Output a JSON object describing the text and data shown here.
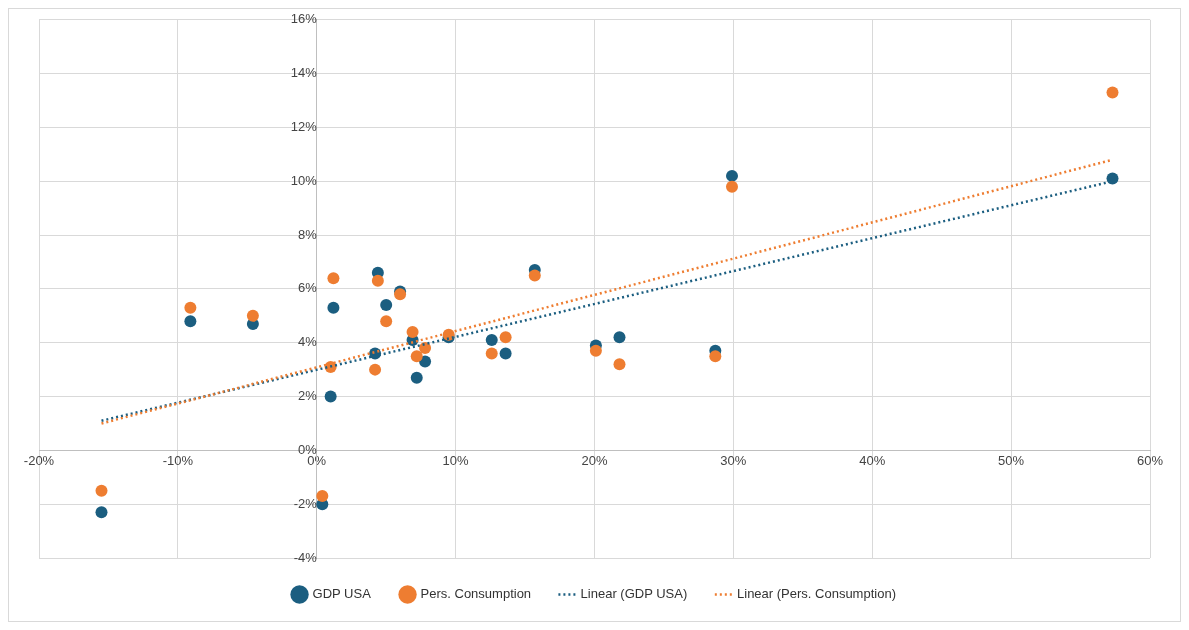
{
  "chart_data": {
    "type": "scatter",
    "grid": true,
    "legend": "bottom",
    "xlim": [
      -20,
      60
    ],
    "ylim": [
      -4,
      16
    ],
    "xticks": [
      {
        "value": -20,
        "label": "-20%"
      },
      {
        "value": -10,
        "label": "-10%"
      },
      {
        "value": 0,
        "label": "0%"
      },
      {
        "value": 10,
        "label": "10%"
      },
      {
        "value": 20,
        "label": "20%"
      },
      {
        "value": 30,
        "label": "30%"
      },
      {
        "value": 40,
        "label": "40%"
      },
      {
        "value": 50,
        "label": "50%"
      },
      {
        "value": 60,
        "label": "60%"
      }
    ],
    "yticks": [
      {
        "value": -4,
        "label": "-4%"
      },
      {
        "value": -2,
        "label": "-2%"
      },
      {
        "value": 0,
        "label": "0%"
      },
      {
        "value": 2,
        "label": "2%"
      },
      {
        "value": 4,
        "label": "4%"
      },
      {
        "value": 6,
        "label": "6%"
      },
      {
        "value": 8,
        "label": "8%"
      },
      {
        "value": 10,
        "label": "10%"
      },
      {
        "value": 12,
        "label": "12%"
      },
      {
        "value": 14,
        "label": "14%"
      },
      {
        "value": 16,
        "label": "16%"
      }
    ],
    "series": [
      {
        "name": "GDP USA",
        "marker": "circle",
        "color": "#1b5e80",
        "x": [
          -15.5,
          -9.1,
          -4.6,
          0.4,
          1.0,
          1.2,
          4.2,
          4.4,
          5.0,
          6.0,
          6.9,
          7.2,
          7.8,
          9.5,
          12.6,
          13.6,
          15.7,
          20.1,
          21.8,
          28.7,
          29.9,
          57.3
        ],
        "values": [
          -2.3,
          4.8,
          4.7,
          -2.0,
          2.0,
          5.3,
          3.6,
          6.6,
          5.4,
          5.9,
          4.1,
          2.7,
          3.3,
          4.2,
          4.1,
          3.6,
          6.7,
          3.9,
          4.2,
          3.7,
          10.2,
          10.1
        ]
      },
      {
        "name": "Pers. Consumption",
        "marker": "circle",
        "color": "#ee7d31",
        "x": [
          -15.5,
          -9.1,
          -4.6,
          0.4,
          1.0,
          1.2,
          4.2,
          4.4,
          5.0,
          6.0,
          6.9,
          7.2,
          7.8,
          9.5,
          12.6,
          13.6,
          15.7,
          20.1,
          21.8,
          28.7,
          29.9,
          57.3
        ],
        "values": [
          -1.5,
          5.3,
          5.0,
          -1.7,
          3.1,
          6.4,
          3.0,
          6.3,
          4.8,
          5.8,
          4.4,
          3.5,
          3.8,
          4.3,
          3.6,
          4.2,
          6.5,
          3.7,
          3.2,
          3.5,
          9.8,
          13.3
        ]
      },
      {
        "name": "Linear (GDP USA)",
        "type": "line",
        "line_style": "dotted",
        "color": "#1b5e80",
        "x": [
          -15.5,
          57.3
        ],
        "values": [
          1.1,
          10.0
        ]
      },
      {
        "name": "Linear (Pers. Consumption)",
        "type": "line",
        "line_style": "dotted",
        "color": "#ee7d31",
        "x": [
          -15.5,
          57.3
        ],
        "values": [
          1.0,
          10.8
        ]
      }
    ]
  }
}
